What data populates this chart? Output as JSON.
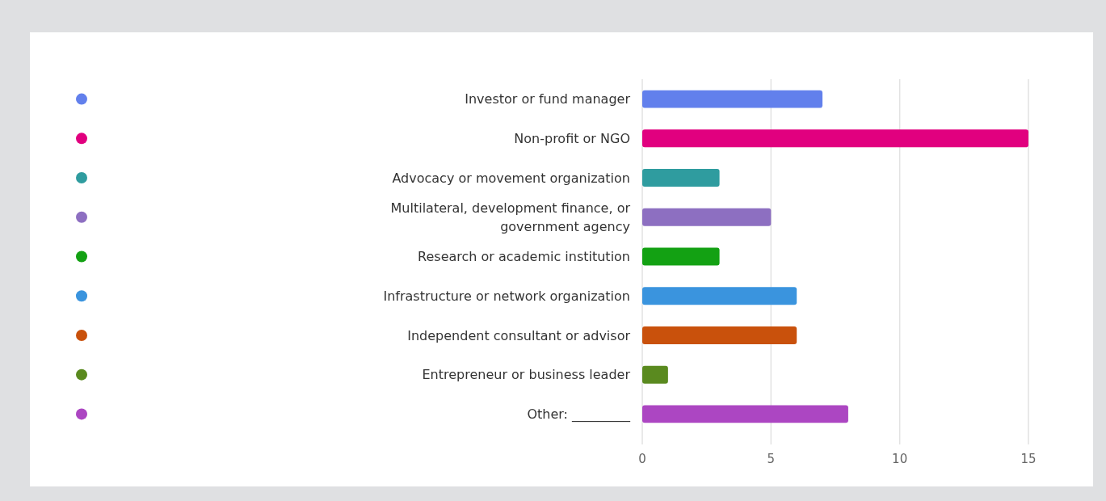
{
  "chart_data": {
    "type": "bar",
    "orientation": "horizontal",
    "categories": [
      "Investor or fund manager",
      "Non-profit or NGO",
      "Advocacy or movement organization",
      "Multilateral, development finance, or government agency",
      "Research or academic institution",
      "Infrastructure or network organization",
      "Independent consultant or advisor",
      "Entrepreneur or business leader",
      "Other: _________"
    ],
    "values": [
      7,
      15,
      3,
      5,
      3,
      6,
      6,
      1,
      8
    ],
    "colors": [
      "#6280ec",
      "#e1007f",
      "#2f9c9f",
      "#8d6fc1",
      "#13a113",
      "#3a94de",
      "#c9510c",
      "#5a8a1f",
      "#ac46c2"
    ],
    "xlim": [
      0,
      15
    ],
    "xticks": [
      0,
      5,
      10,
      15
    ],
    "grid": "x"
  }
}
